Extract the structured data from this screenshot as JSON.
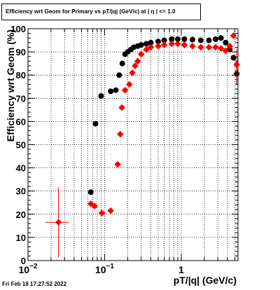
{
  "title": "Efficiency wrt Geom for Primary vs pT/|q| (GeV/c) at |  η  | <= 1.0",
  "timestamp": "Fri Feb 18 17:27:52 2022",
  "chart_data": {
    "type": "scatter",
    "xlabel": "pT/|q| (GeV/c)",
    "ylabel": "Efficiency wrt Geom (%)",
    "xscale": "log",
    "xlim": [
      0.01,
      5.5
    ],
    "ylim": [
      0,
      100
    ],
    "grid": true,
    "xticks": [
      {
        "value": 0.01,
        "label": "10",
        "exp": "−2"
      },
      {
        "value": 0.1,
        "label": "10",
        "exp": "−1"
      },
      {
        "value": 1,
        "label": "1",
        "exp": ""
      }
    ],
    "yticks": [
      0,
      10,
      20,
      30,
      40,
      50,
      60,
      70,
      80,
      90,
      100
    ],
    "series": [
      {
        "color": "#000000",
        "marker": "circle",
        "points": [
          {
            "x": 0.066,
            "y": 29.5
          },
          {
            "x": 0.076,
            "y": 59
          },
          {
            "x": 0.09,
            "y": 71
          },
          {
            "x": 0.12,
            "y": 73
          },
          {
            "x": 0.14,
            "y": 73.5
          },
          {
            "x": 0.155,
            "y": 80
          },
          {
            "x": 0.17,
            "y": 85
          },
          {
            "x": 0.185,
            "y": 89
          },
          {
            "x": 0.2,
            "y": 90
          },
          {
            "x": 0.22,
            "y": 91
          },
          {
            "x": 0.24,
            "y": 92
          },
          {
            "x": 0.27,
            "y": 92.5
          },
          {
            "x": 0.3,
            "y": 93
          },
          {
            "x": 0.35,
            "y": 93.5
          },
          {
            "x": 0.4,
            "y": 94
          },
          {
            "x": 0.5,
            "y": 94.5
          },
          {
            "x": 0.6,
            "y": 95
          },
          {
            "x": 0.75,
            "y": 95.5
          },
          {
            "x": 0.9,
            "y": 95.5
          },
          {
            "x": 1.1,
            "y": 95.5
          },
          {
            "x": 1.4,
            "y": 95.3
          },
          {
            "x": 1.8,
            "y": 95
          },
          {
            "x": 2.3,
            "y": 95
          },
          {
            "x": 2.8,
            "y": 95.5
          },
          {
            "x": 3.3,
            "y": 96
          },
          {
            "x": 3.8,
            "y": 94
          },
          {
            "x": 4.3,
            "y": 91
          },
          {
            "x": 4.8,
            "y": 87.5
          },
          {
            "x": 5.3,
            "y": 80.5,
            "err": 4.5
          }
        ]
      },
      {
        "color": "#ff0000",
        "marker": "diamond",
        "points": [
          {
            "x": 0.025,
            "y": 16.5,
            "xerr": [
              0.017,
              0.034
            ],
            "err": 15
          },
          {
            "x": 0.066,
            "y": 24.5
          },
          {
            "x": 0.074,
            "y": 23.5
          },
          {
            "x": 0.092,
            "y": 20.5
          },
          {
            "x": 0.12,
            "y": 21.5
          },
          {
            "x": 0.148,
            "y": 41.5
          },
          {
            "x": 0.16,
            "y": 54.5
          },
          {
            "x": 0.168,
            "y": 66
          },
          {
            "x": 0.185,
            "y": 73.5
          },
          {
            "x": 0.21,
            "y": 76
          },
          {
            "x": 0.23,
            "y": 81
          },
          {
            "x": 0.25,
            "y": 84
          },
          {
            "x": 0.27,
            "y": 86
          },
          {
            "x": 0.3,
            "y": 89
          },
          {
            "x": 0.35,
            "y": 91
          },
          {
            "x": 0.4,
            "y": 92
          },
          {
            "x": 0.5,
            "y": 92.5
          },
          {
            "x": 0.6,
            "y": 93
          },
          {
            "x": 0.75,
            "y": 93.5
          },
          {
            "x": 0.9,
            "y": 93.5
          },
          {
            "x": 1.1,
            "y": 93
          },
          {
            "x": 1.4,
            "y": 92.5
          },
          {
            "x": 1.8,
            "y": 92
          },
          {
            "x": 2.3,
            "y": 92
          },
          {
            "x": 2.8,
            "y": 92
          },
          {
            "x": 3.3,
            "y": 91.5
          },
          {
            "x": 3.8,
            "y": 90.5
          },
          {
            "x": 4.3,
            "y": 92.5
          },
          {
            "x": 4.8,
            "y": 97
          },
          {
            "x": 5.3,
            "y": 84.5,
            "err": 7
          }
        ]
      }
    ]
  }
}
